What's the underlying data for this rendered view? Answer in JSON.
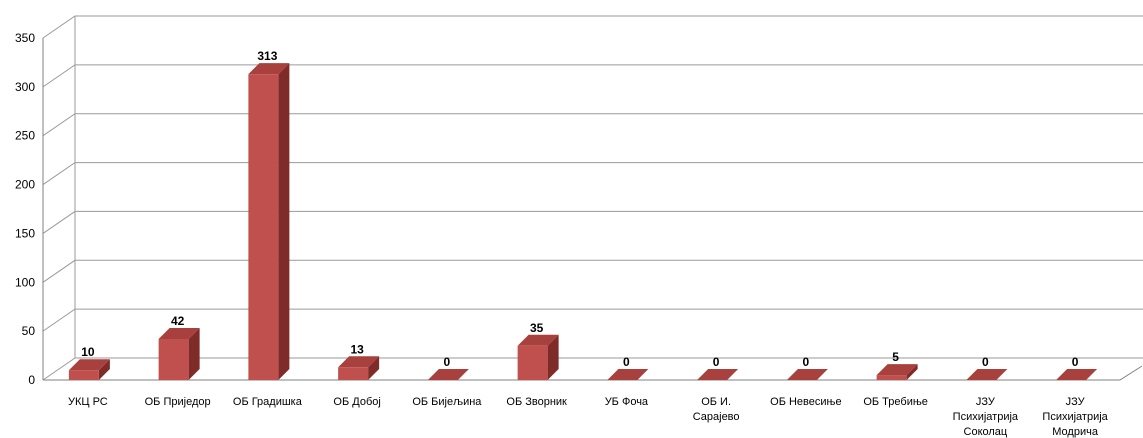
{
  "chart_data": {
    "type": "bar",
    "style": "3d-column",
    "categories": [
      [
        "УКЦ РС"
      ],
      [
        "ОБ Приједор"
      ],
      [
        "ОБ Градишка"
      ],
      [
        "ОБ Добој"
      ],
      [
        "ОБ Бијељина"
      ],
      [
        "ОБ Зворник"
      ],
      [
        "УБ Фоча"
      ],
      [
        "ОБ И.",
        "Сарајево"
      ],
      [
        "ОБ Невесиње"
      ],
      [
        "ОБ Требиње"
      ],
      [
        "ЈЗУ",
        "Психијатрија",
        "Соколац"
      ],
      [
        "ЈЗУ",
        "Психијатрија",
        "Модрича"
      ]
    ],
    "values": [
      10,
      42,
      313,
      13,
      0,
      35,
      0,
      0,
      0,
      5,
      0,
      0
    ],
    "data_labels": [
      "10",
      "42",
      "313",
      "13",
      "0",
      "35",
      "0",
      "0",
      "0",
      "5",
      "0",
      "0"
    ],
    "yticks": [
      "0",
      "50",
      "100",
      "150",
      "200",
      "250",
      "300",
      "350"
    ],
    "ylim": [
      0,
      350
    ],
    "title": "",
    "xlabel": "",
    "ylabel": "",
    "grid": true,
    "legend": "none",
    "colors": {
      "bar_front": "#c0504d",
      "bar_top": "#a8403d",
      "bar_side": "#7f2b29",
      "grid": "#9a9a9a"
    }
  }
}
